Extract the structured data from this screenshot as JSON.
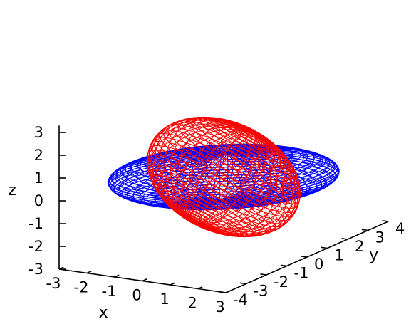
{
  "chart_data": {
    "type": "3d-wireframe-surface",
    "title": "",
    "axes": {
      "x": {
        "label": "x",
        "range": [
          -3,
          3
        ],
        "ticks": [
          "-3",
          "-2",
          "-1",
          "0",
          "1",
          "2",
          "3"
        ]
      },
      "y": {
        "label": "y",
        "range": [
          -4,
          4
        ],
        "ticks": [
          "-4",
          "-3",
          "-2",
          "-1",
          "0",
          "1",
          "2",
          "3",
          "4"
        ]
      },
      "z": {
        "label": "z",
        "range": [
          -3,
          3
        ],
        "ticks": [
          "-3",
          "-2",
          "-1",
          "0",
          "1",
          "2",
          "3"
        ]
      }
    },
    "grid": false,
    "legend": null,
    "series": [
      {
        "shape": "ellipsoid",
        "color": "#0000ff",
        "center": [
          0,
          0,
          0
        ],
        "semi_axes": [
          3,
          4,
          1
        ],
        "rotation_deg": {
          "about_x": -10,
          "about_y": 0,
          "about_z": 0
        }
      },
      {
        "shape": "ellipsoid",
        "color": "#ff0000",
        "center": [
          0,
          0,
          0
        ],
        "semi_axes": [
          1.5,
          4,
          2
        ],
        "rotation_deg": {
          "about_x": -45,
          "about_y": 0,
          "about_z": 0
        }
      }
    ]
  }
}
